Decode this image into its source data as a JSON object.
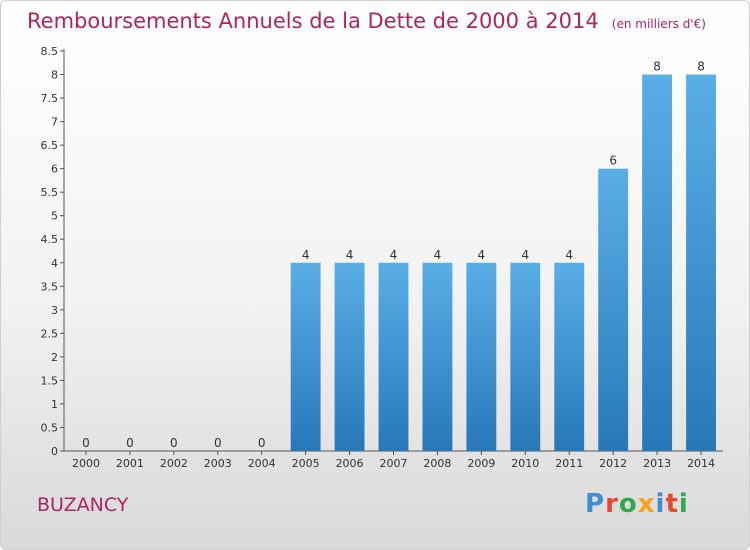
{
  "title": "Remboursements Annuels de la Dette de 2000 à 2014",
  "unit": "(en milliers d'€)",
  "city": "BUZANCY",
  "logo": {
    "text": "Proxiti",
    "colors": [
      "#3d8fd1",
      "#e8492e",
      "#2fa84f",
      "#f4a11c",
      "#3d8fd1",
      "#e8492e",
      "#2fa84f"
    ]
  },
  "colors": {
    "bar_top": "#5aaee6",
    "bar_bottom": "#2878b8",
    "title": "#b0245e",
    "axis": "#555555"
  },
  "chart_data": {
    "type": "bar",
    "categories": [
      "2000",
      "2001",
      "2002",
      "2003",
      "2004",
      "2005",
      "2006",
      "2007",
      "2008",
      "2009",
      "2010",
      "2011",
      "2012",
      "2013",
      "2014"
    ],
    "values": [
      0,
      0,
      0,
      0,
      0,
      4,
      4,
      4,
      4,
      4,
      4,
      4,
      6,
      8,
      8
    ],
    "data_labels": [
      "0",
      "0",
      "0",
      "0",
      "0",
      "4",
      "4",
      "4",
      "4",
      "4",
      "4",
      "4",
      "6",
      "8",
      "8"
    ],
    "yticks": [
      "0",
      "0.5",
      "1",
      "1.5",
      "2",
      "2.5",
      "3",
      "3.5",
      "4",
      "4.5",
      "5",
      "5.5",
      "6",
      "6.5",
      "7",
      "7.5",
      "8",
      "8.5"
    ],
    "ylim": [
      0,
      8.5
    ],
    "grid": false,
    "title": "Remboursements Annuels de la Dette de 2000 à 2014",
    "xlabel": "",
    "ylabel": ""
  }
}
